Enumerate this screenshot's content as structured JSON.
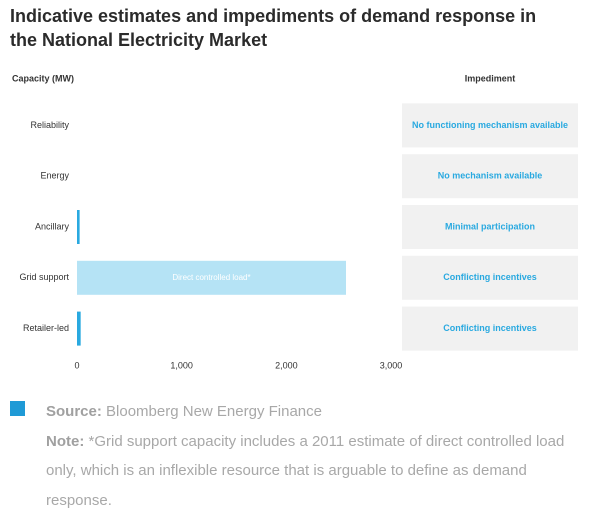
{
  "chart_data": {
    "type": "bar",
    "orientation": "horizontal",
    "title": "Indicative estimates and impediments of demand response in the National Electricity Market",
    "title_lines": [
      "Indicative estimates and impediments of demand response in",
      "the National Electricity Market"
    ],
    "x_label": "Capacity (MW)",
    "impediment_header": "Impediment",
    "categories": [
      "Reliability",
      "Energy",
      "Ancillary",
      "Grid support",
      "Retailer-led"
    ],
    "values": [
      0,
      0,
      25,
      2570,
      35
    ],
    "colors": [
      "#29a9e0",
      "#29a9e0",
      "#29a9e0",
      "#b5e3f5",
      "#29a9e0"
    ],
    "bar_labels": [
      null,
      null,
      null,
      "Direct controlled load*",
      null
    ],
    "impediments": [
      "No functioning mechanism available",
      "No mechanism available",
      "Minimal participation",
      "Conflicting incentives",
      "Conflicting incentives"
    ],
    "xlim": [
      0,
      3000
    ],
    "xticks": [
      0,
      {
        "value": 1000,
        "label": "1,000"
      },
      {
        "value": 2000,
        "label": "2,000"
      },
      {
        "value": 3000,
        "label": "3,000"
      }
    ],
    "source": {
      "label": "Source:",
      "text": "Bloomberg New Energy Finance"
    },
    "note": {
      "label": "Note:",
      "text": "*Grid support capacity includes a 2011 estimate of direct controlled load only, which is an inflexible resource that is arguable to define as demand response."
    }
  }
}
